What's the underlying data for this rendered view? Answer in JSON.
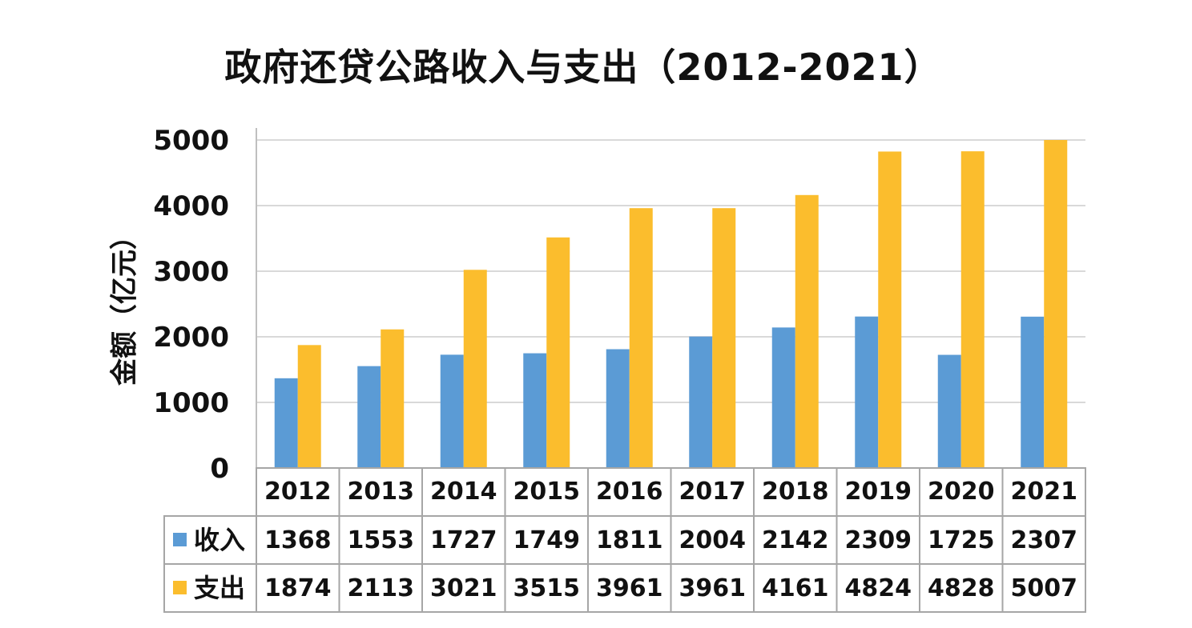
{
  "chart_data": {
    "type": "bar",
    "title": "政府还贷公路收入与支出（2012-2021）",
    "xlabel": "",
    "ylabel": "金额（亿元）",
    "ylim": [
      0,
      5000
    ],
    "yticks": [
      0,
      1000,
      2000,
      3000,
      4000,
      5000
    ],
    "grid": true,
    "legend": "data-table",
    "categories": [
      "2012",
      "2013",
      "2014",
      "2015",
      "2016",
      "2017",
      "2018",
      "2019",
      "2020",
      "2021"
    ],
    "series": [
      {
        "name": "收入",
        "color": "#5b9bd5",
        "values": [
          1368,
          1553,
          1727,
          1749,
          1811,
          2004,
          2142,
          2309,
          1725,
          2307
        ]
      },
      {
        "name": "支出",
        "color": "#fbbd2d",
        "values": [
          1874,
          2113,
          3021,
          3515,
          3961,
          3961,
          4161,
          4824,
          4828,
          5007
        ]
      }
    ]
  }
}
